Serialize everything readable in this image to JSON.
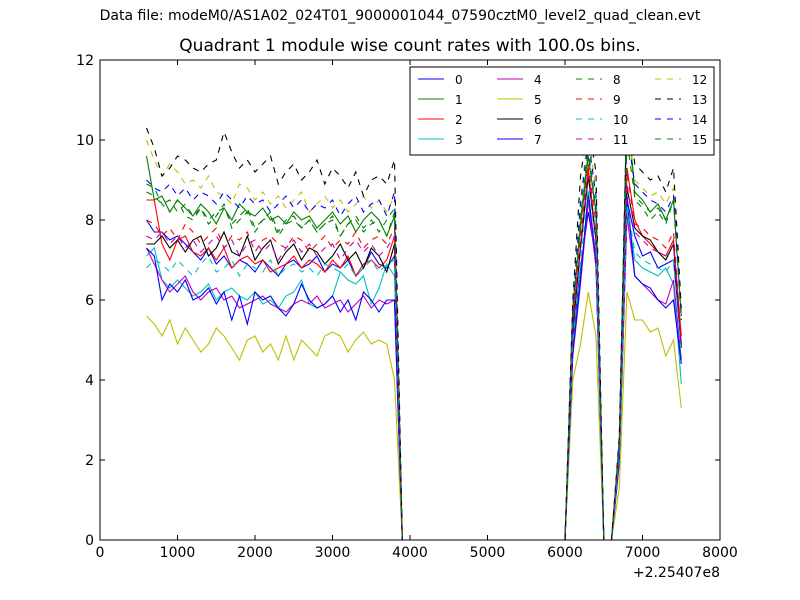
{
  "page": {
    "suptitle": "Data file: modeM0/AS1A02_024T01_9000001044_07590cztM0_level2_quad_clean.evt",
    "title": "Quadrant 1 module wise count rates with 100.0s bins."
  },
  "chart_data": {
    "type": "line",
    "title": "Quadrant 1 module wise count rates with 100.0s bins.",
    "xlabel": "",
    "ylabel": "",
    "x_offset_label": "+2.25407e8",
    "xlim": [
      0,
      8000
    ],
    "ylim": [
      0,
      12
    ],
    "xticks": [
      0,
      1000,
      2000,
      3000,
      4000,
      5000,
      6000,
      7000,
      8000
    ],
    "yticks": [
      0,
      2,
      4,
      6,
      8,
      10,
      12
    ],
    "grid": false,
    "legend_position": "top-right",
    "legend_columns": 4,
    "x": [
      600,
      700,
      800,
      900,
      1000,
      1100,
      1200,
      1300,
      1400,
      1500,
      1600,
      1700,
      1800,
      1900,
      2000,
      2100,
      2200,
      2300,
      2400,
      2500,
      2600,
      2700,
      2800,
      2900,
      3000,
      3100,
      3200,
      3300,
      3400,
      3500,
      3600,
      3700,
      3800,
      3900,
      6000,
      6100,
      6200,
      6300,
      6400,
      6500,
      6600,
      6700,
      6800,
      6900,
      7000,
      7100,
      7200,
      7300,
      7400,
      7500
    ],
    "series": [
      {
        "name": "0",
        "color": "#0000ff",
        "dash": "solid",
        "values": [
          8.0,
          7.7,
          7.7,
          7.5,
          7.6,
          7.4,
          7.2,
          7.0,
          7.3,
          6.9,
          7.1,
          6.8,
          7.0,
          6.9,
          6.7,
          7.0,
          6.8,
          6.6,
          6.9,
          7.0,
          6.8,
          6.9,
          7.1,
          6.7,
          6.9,
          6.8,
          7.0,
          6.6,
          6.8,
          7.2,
          6.9,
          6.8,
          7.1,
          0,
          0,
          5.0,
          6.8,
          8.2,
          7.0,
          0,
          0,
          2.0,
          8.5,
          7.6,
          7.1,
          7.2,
          6.8,
          6.9,
          7.0,
          4.9
        ]
      },
      {
        "name": "1",
        "color": "#008000",
        "dash": "solid",
        "values": [
          9.6,
          8.5,
          8.6,
          8.2,
          8.5,
          8.3,
          8.1,
          8.4,
          8.2,
          7.9,
          8.3,
          8.0,
          8.4,
          8.2,
          8.1,
          8.3,
          8.0,
          8.1,
          7.9,
          8.2,
          8.0,
          8.1,
          7.8,
          8.0,
          8.2,
          7.9,
          8.1,
          7.7,
          8.0,
          8.2,
          8.0,
          7.6,
          8.1,
          0,
          0,
          5.8,
          7.8,
          9.6,
          8.2,
          0,
          0,
          2.5,
          11.0,
          8.7,
          8.5,
          8.2,
          8.4,
          8.0,
          8.5,
          5.6
        ]
      },
      {
        "name": "2",
        "color": "#ff0000",
        "dash": "solid",
        "values": [
          8.5,
          8.5,
          7.4,
          7.0,
          7.5,
          7.6,
          7.2,
          7.1,
          7.3,
          7.0,
          7.3,
          6.8,
          7.0,
          7.1,
          6.9,
          7.0,
          6.7,
          6.8,
          6.9,
          7.1,
          6.8,
          7.0,
          6.9,
          6.7,
          7.0,
          6.8,
          7.1,
          6.6,
          6.9,
          7.0,
          6.8,
          7.0,
          7.6,
          0,
          0,
          5.2,
          7.3,
          9.3,
          7.5,
          0,
          0,
          2.2,
          9.3,
          8.0,
          7.6,
          7.4,
          7.2,
          7.1,
          7.5,
          5.1
        ]
      },
      {
        "name": "3",
        "color": "#00bfbf",
        "dash": "solid",
        "values": [
          7.1,
          7.3,
          6.5,
          6.3,
          6.5,
          6.3,
          6.1,
          6.2,
          6.4,
          6.0,
          6.2,
          6.3,
          6.1,
          6.0,
          6.2,
          5.9,
          6.0,
          5.8,
          6.1,
          6.2,
          6.5,
          5.9,
          5.8,
          5.9,
          6.1,
          6.7,
          6.5,
          6.4,
          6.6,
          5.9,
          6.3,
          6.9,
          6.6,
          0,
          0,
          4.8,
          6.6,
          8.6,
          7.0,
          0,
          0,
          2.0,
          8.3,
          7.0,
          6.8,
          6.7,
          6.6,
          6.8,
          6.4,
          3.9
        ]
      },
      {
        "name": "4",
        "color": "#bf00bf",
        "dash": "solid",
        "values": [
          7.3,
          6.9,
          6.5,
          6.2,
          6.4,
          6.6,
          6.2,
          6.0,
          6.2,
          6.3,
          6.0,
          6.1,
          5.8,
          5.9,
          6.0,
          6.1,
          5.9,
          5.8,
          5.7,
          5.9,
          6.0,
          5.9,
          6.1,
          5.8,
          5.9,
          6.0,
          5.7,
          5.9,
          6.1,
          5.8,
          6.0,
          5.9,
          6.0,
          0,
          0,
          4.6,
          6.4,
          8.5,
          6.8,
          0,
          0,
          1.9,
          8.1,
          6.6,
          6.4,
          6.2,
          6.0,
          5.9,
          6.5,
          4.5
        ]
      },
      {
        "name": "5",
        "color": "#bfbf00",
        "dash": "solid",
        "values": [
          5.6,
          5.4,
          5.1,
          5.5,
          4.9,
          5.3,
          5.0,
          4.7,
          4.9,
          5.3,
          5.1,
          4.8,
          4.5,
          5.0,
          5.1,
          4.7,
          4.9,
          4.5,
          5.1,
          4.5,
          5.0,
          4.8,
          4.6,
          5.1,
          5.2,
          5.1,
          4.7,
          5.0,
          5.2,
          4.9,
          5.0,
          4.9,
          4.0,
          0,
          0,
          4.0,
          4.9,
          6.2,
          5.1,
          0,
          0,
          1.3,
          6.2,
          5.5,
          5.5,
          5.2,
          5.3,
          4.6,
          5.0,
          3.3
        ]
      },
      {
        "name": "6",
        "color": "#000000",
        "dash": "solid",
        "values": [
          7.4,
          7.4,
          7.6,
          7.3,
          7.5,
          7.2,
          7.5,
          7.6,
          7.1,
          7.3,
          7.7,
          7.2,
          7.1,
          7.6,
          7.0,
          7.3,
          7.5,
          6.9,
          7.2,
          7.4,
          7.0,
          7.3,
          7.2,
          6.9,
          7.1,
          7.4,
          7.0,
          7.2,
          6.8,
          7.3,
          7.1,
          6.7,
          7.4,
          0,
          0,
          5.3,
          7.3,
          9.1,
          7.5,
          0,
          0,
          2.2,
          8.8,
          7.8,
          7.6,
          7.5,
          7.2,
          7.0,
          7.4,
          4.8
        ]
      },
      {
        "name": "7",
        "color": "#0000ff",
        "dash": "solid",
        "values": [
          7.3,
          7.1,
          6.0,
          6.4,
          6.2,
          6.5,
          6.0,
          6.1,
          6.3,
          5.9,
          6.2,
          5.5,
          6.1,
          5.4,
          6.2,
          6.0,
          6.1,
          5.8,
          5.6,
          5.9,
          6.4,
          6.0,
          5.8,
          5.9,
          6.1,
          5.7,
          6.0,
          5.5,
          6.2,
          6.0,
          5.7,
          6.0,
          6.0,
          0,
          0,
          4.7,
          6.5,
          8.7,
          7.0,
          0,
          0,
          2.0,
          8.6,
          6.6,
          6.4,
          6.3,
          6.0,
          5.8,
          6.0,
          4.4
        ]
      },
      {
        "name": "8",
        "color": "#008000",
        "dash": "dashed",
        "values": [
          8.9,
          8.8,
          8.4,
          8.2,
          8.5,
          8.1,
          8.0,
          8.3,
          7.9,
          8.1,
          8.4,
          7.8,
          8.0,
          8.2,
          7.7,
          8.0,
          8.1,
          7.6,
          7.9,
          8.0,
          7.8,
          8.0,
          7.7,
          7.9,
          8.0,
          7.6,
          7.9,
          8.1,
          7.8,
          8.0,
          7.7,
          8.0,
          8.3,
          0,
          0,
          5.5,
          8.0,
          9.7,
          8.1,
          0,
          0,
          2.3,
          11.2,
          8.5,
          8.3,
          8.0,
          8.2,
          7.9,
          8.5,
          5.5
        ]
      },
      {
        "name": "9",
        "color": "#ff0000",
        "dash": "dashed",
        "values": [
          8.0,
          7.9,
          7.6,
          7.8,
          7.5,
          7.9,
          7.7,
          7.4,
          7.6,
          7.8,
          7.3,
          7.6,
          7.5,
          7.7,
          7.2,
          7.5,
          7.6,
          7.4,
          7.3,
          7.6,
          7.5,
          7.2,
          7.4,
          7.6,
          7.3,
          7.5,
          7.4,
          7.7,
          7.3,
          7.5,
          7.6,
          7.4,
          7.8,
          0,
          0,
          5.5,
          7.6,
          9.4,
          7.9,
          0,
          0,
          2.2,
          9.2,
          7.9,
          7.8,
          7.6,
          7.5,
          7.3,
          7.7,
          5.0
        ]
      },
      {
        "name": "10",
        "color": "#00bfbf",
        "dash": "dashed",
        "values": [
          6.8,
          7.0,
          6.9,
          6.7,
          7.0,
          6.8,
          6.6,
          6.9,
          7.1,
          6.7,
          6.8,
          7.0,
          6.6,
          6.9,
          6.8,
          6.7,
          7.0,
          6.6,
          6.8,
          6.9,
          6.7,
          6.8,
          6.6,
          6.9,
          6.8,
          6.7,
          6.9,
          6.6,
          6.8,
          7.0,
          6.7,
          6.9,
          7.0,
          0,
          0,
          5.0,
          6.9,
          8.8,
          7.2,
          0,
          0,
          2.1,
          8.4,
          7.2,
          7.0,
          6.9,
          6.8,
          6.7,
          7.0,
          4.6
        ]
      },
      {
        "name": "11",
        "color": "#bf00bf",
        "dash": "dashed",
        "values": [
          7.6,
          7.5,
          7.7,
          7.4,
          7.6,
          7.3,
          7.5,
          7.2,
          7.4,
          7.6,
          7.3,
          7.5,
          7.1,
          7.4,
          7.5,
          7.2,
          7.4,
          7.0,
          7.3,
          7.5,
          7.2,
          7.4,
          7.1,
          7.3,
          7.4,
          7.0,
          7.3,
          7.5,
          7.2,
          7.4,
          7.1,
          7.3,
          7.6,
          0,
          0,
          5.4,
          7.4,
          9.2,
          7.6,
          0,
          0,
          2.2,
          8.9,
          7.7,
          7.5,
          7.3,
          7.2,
          7.1,
          7.4,
          4.9
        ]
      },
      {
        "name": "12",
        "color": "#bfbf00",
        "dash": "dashed",
        "values": [
          10.0,
          9.5,
          9.1,
          9.4,
          9.2,
          8.9,
          9.0,
          8.8,
          9.1,
          8.7,
          8.6,
          8.4,
          8.9,
          8.8,
          8.5,
          8.7,
          8.4,
          8.6,
          8.3,
          8.5,
          8.7,
          8.2,
          8.4,
          8.6,
          8.3,
          8.5,
          8.2,
          8.4,
          8.6,
          8.3,
          8.5,
          8.2,
          8.6,
          0,
          0,
          5.9,
          8.5,
          10.2,
          8.7,
          0,
          0,
          2.5,
          10.5,
          9.0,
          8.8,
          8.6,
          8.7,
          8.4,
          8.8,
          5.7
        ]
      },
      {
        "name": "13",
        "color": "#000000",
        "dash": "dashed",
        "values": [
          10.3,
          9.8,
          9.1,
          9.3,
          9.6,
          9.5,
          9.3,
          9.2,
          9.4,
          9.5,
          10.2,
          9.7,
          9.3,
          9.5,
          9.2,
          9.4,
          9.6,
          8.9,
          9.2,
          9.4,
          9.0,
          9.2,
          9.5,
          8.9,
          9.3,
          9.1,
          8.8,
          9.2,
          8.6,
          9.0,
          9.1,
          8.9,
          9.5,
          0,
          0,
          6.0,
          9.1,
          10.4,
          9.2,
          0,
          0,
          2.6,
          10.9,
          9.4,
          9.2,
          9.0,
          9.1,
          8.7,
          9.3,
          5.8
        ]
      },
      {
        "name": "14",
        "color": "#0000ff",
        "dash": "dashed",
        "values": [
          9.0,
          8.8,
          8.7,
          8.9,
          8.6,
          8.8,
          8.5,
          8.7,
          8.6,
          8.4,
          8.7,
          8.5,
          8.3,
          8.6,
          8.4,
          8.5,
          8.2,
          8.4,
          8.6,
          8.3,
          8.5,
          8.2,
          8.4,
          8.3,
          8.5,
          8.1,
          8.4,
          8.6,
          8.2,
          8.4,
          8.5,
          8.1,
          8.7,
          0,
          0,
          5.8,
          8.4,
          10.0,
          8.6,
          0,
          0,
          2.4,
          10.2,
          8.9,
          8.7,
          8.5,
          8.4,
          8.2,
          8.6,
          5.6
        ]
      },
      {
        "name": "15",
        "color": "#008000",
        "dash": "dashed",
        "values": [
          8.7,
          8.6,
          8.4,
          8.5,
          8.2,
          8.4,
          8.1,
          8.3,
          8.0,
          8.2,
          8.3,
          7.9,
          8.1,
          8.3,
          7.8,
          8.0,
          8.2,
          7.7,
          8.0,
          8.1,
          7.8,
          8.0,
          7.7,
          7.9,
          8.1,
          7.6,
          7.9,
          8.0,
          7.7,
          7.9,
          8.0,
          7.6,
          8.2,
          0,
          0,
          5.6,
          8.1,
          9.8,
          8.3,
          0,
          0,
          2.3,
          10.0,
          8.6,
          8.4,
          8.2,
          8.3,
          8.0,
          8.5,
          5.5
        ]
      }
    ]
  }
}
